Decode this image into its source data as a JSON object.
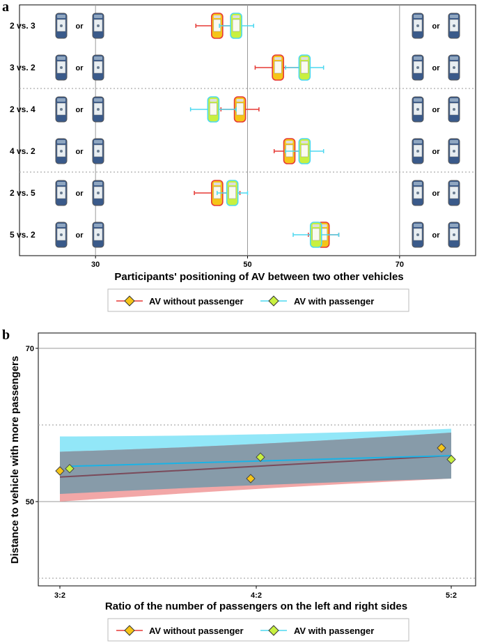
{
  "colors": {
    "without": "#e53935",
    "with": "#4dd8f0",
    "without_fill": "#f0a030",
    "with_fill": "#c8f040",
    "car_body": "#3a5a8a",
    "band_with": "#7fe3f7",
    "band_without": "#ee8a8a",
    "band_overlap": "#7e9aaa",
    "line_without": "#7a4a5a",
    "line_with": "#1ab3e6"
  },
  "chart_data": [
    {
      "panel": "a",
      "type": "dot-errorbar",
      "xlabel": "Participants' positioning of AV between two other vehicles",
      "xlim": [
        20,
        80
      ],
      "xticks": [
        30,
        50,
        70
      ],
      "xtick_labels": [
        "30",
        "50",
        "70"
      ],
      "or_label": "or",
      "rows": [
        {
          "label": "2 vs. 3",
          "without": {
            "mean": 46.0,
            "lo": 43.2,
            "hi": 48.8
          },
          "with": {
            "mean": 48.5,
            "lo": 46.3,
            "hi": 50.8
          }
        },
        {
          "label": "3 vs. 2",
          "without": {
            "mean": 54.0,
            "lo": 51.0,
            "hi": 57.0
          },
          "with": {
            "mean": 57.5,
            "lo": 55.0,
            "hi": 60.0
          }
        },
        {
          "label": "2 vs. 4",
          "without": {
            "mean": 49.0,
            "lo": 46.5,
            "hi": 51.5
          },
          "with": {
            "mean": 45.5,
            "lo": 42.5,
            "hi": 48.5
          }
        },
        {
          "label": "4 vs. 2",
          "without": {
            "mean": 55.5,
            "lo": 53.5,
            "hi": 57.5
          },
          "with": {
            "mean": 57.5,
            "lo": 55.0,
            "hi": 60.0
          }
        },
        {
          "label": "2 vs. 5",
          "without": {
            "mean": 46.0,
            "lo": 43.0,
            "hi": 49.0
          },
          "with": {
            "mean": 48.0,
            "lo": 46.0,
            "hi": 50.0
          }
        },
        {
          "label": "5 vs. 2",
          "without": {
            "mean": 60.0,
            "lo": 58.0,
            "hi": 62.0
          },
          "with": {
            "mean": 59.0,
            "lo": 56.0,
            "hi": 62.0
          }
        }
      ],
      "group_separators_after_rows": [
        2,
        4
      ],
      "legend": [
        "AV without passenger",
        "AV with passenger"
      ]
    },
    {
      "panel": "b",
      "type": "scatter-regression",
      "xlabel": "Ratio of the number of passengers on the left and right sides",
      "ylabel": "Distance to vehicle with more passengers",
      "categories": [
        "3:2",
        "4:2",
        "5:2"
      ],
      "ylim": [
        39,
        72
      ],
      "yticks": [
        50,
        70
      ],
      "ytick_labels": [
        "50",
        "70"
      ],
      "minor_gridlines": [
        40,
        60
      ],
      "series": [
        {
          "name": "AV without passenger",
          "points": [
            54.0,
            53.0,
            57.0
          ],
          "fit": [
            53.2,
            56.0
          ],
          "band_lower": [
            50.0,
            53.0
          ],
          "band_upper": [
            56.5,
            59.0
          ]
        },
        {
          "name": "AV with passenger",
          "points": [
            54.3,
            55.8,
            55.5
          ],
          "fit": [
            54.6,
            56.0
          ],
          "band_lower": [
            51.0,
            53.0
          ],
          "band_upper": [
            58.5,
            59.5
          ]
        }
      ],
      "legend": [
        "AV without passenger",
        "AV with passenger"
      ]
    }
  ]
}
